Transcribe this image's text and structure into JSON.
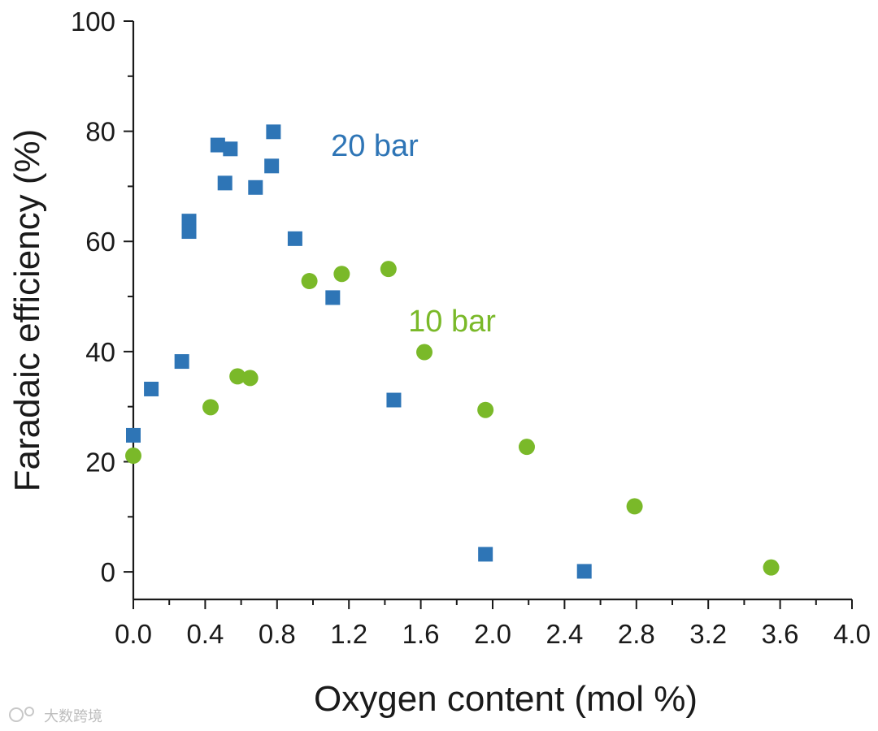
{
  "chart_data": {
    "type": "scatter",
    "title": "",
    "xlabel": "Oxygen content (mol  %)",
    "ylabel": "Faradaic efficiency (%)",
    "xlim": [
      0.0,
      4.0
    ],
    "ylim": [
      -5,
      100
    ],
    "x_ticks": [
      "0.0",
      "0.4",
      "0.8",
      "1.2",
      "1.6",
      "2.0",
      "2.4",
      "2.8",
      "3.2",
      "3.6",
      "4.0"
    ],
    "y_ticks": [
      "0",
      "20",
      "40",
      "60",
      "80",
      "100"
    ],
    "grid": false,
    "series": [
      {
        "name": "20 bar",
        "marker": "square",
        "color": "#2e75b6",
        "x": [
          0.0,
          0.1,
          0.27,
          0.31,
          0.31,
          0.47,
          0.51,
          0.54,
          0.68,
          0.77,
          0.78,
          0.9,
          1.11,
          1.45,
          1.96,
          2.51
        ],
        "y": [
          24.8,
          33.2,
          38.2,
          63.7,
          61.8,
          77.5,
          70.6,
          76.8,
          69.8,
          73.7,
          79.9,
          60.5,
          49.8,
          31.2,
          3.2,
          0.1
        ]
      },
      {
        "name": "10 bar",
        "marker": "circle",
        "color": "#7ab929",
        "x": [
          0.0,
          0.43,
          0.58,
          0.65,
          0.98,
          1.16,
          1.42,
          1.62,
          1.96,
          2.19,
          2.79,
          3.55
        ],
        "y": [
          21.1,
          29.9,
          35.5,
          35.2,
          52.8,
          54.1,
          55.0,
          39.9,
          29.4,
          22.7,
          11.9,
          0.8
        ]
      }
    ],
    "annotations": [
      {
        "text": "20 bar",
        "x": 1.1,
        "y": 75.5,
        "series": 0
      },
      {
        "text": "10 bar",
        "x": 1.53,
        "y": 43.7,
        "series": 1
      }
    ]
  },
  "watermark": {
    "text": "大数跨境"
  }
}
